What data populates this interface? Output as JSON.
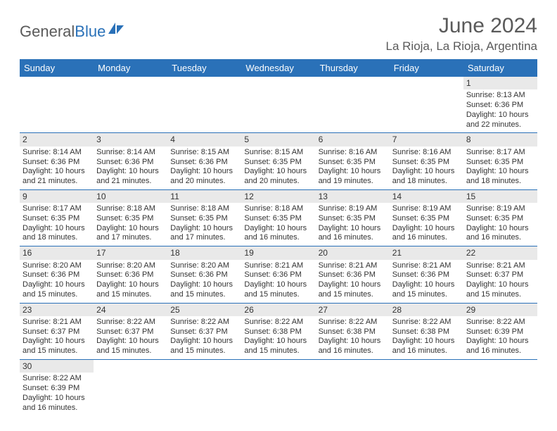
{
  "brand": {
    "part1": "General",
    "part2": "Blue"
  },
  "title": "June 2024",
  "location": "La Rioja, La Rioja, Argentina",
  "colors": {
    "header_bg": "#2a71b8",
    "header_text": "#ffffff",
    "daynum_bg": "#e9e9e9",
    "border": "#2a71b8",
    "text": "#333333",
    "title_text": "#5a5a5a"
  },
  "weekdays": [
    "Sunday",
    "Monday",
    "Tuesday",
    "Wednesday",
    "Thursday",
    "Friday",
    "Saturday"
  ],
  "cells": [
    null,
    null,
    null,
    null,
    null,
    null,
    {
      "n": "1",
      "sr": "8:13 AM",
      "ss": "6:36 PM",
      "dl": "10 hours and 22 minutes."
    },
    {
      "n": "2",
      "sr": "8:14 AM",
      "ss": "6:36 PM",
      "dl": "10 hours and 21 minutes."
    },
    {
      "n": "3",
      "sr": "8:14 AM",
      "ss": "6:36 PM",
      "dl": "10 hours and 21 minutes."
    },
    {
      "n": "4",
      "sr": "8:15 AM",
      "ss": "6:36 PM",
      "dl": "10 hours and 20 minutes."
    },
    {
      "n": "5",
      "sr": "8:15 AM",
      "ss": "6:35 PM",
      "dl": "10 hours and 20 minutes."
    },
    {
      "n": "6",
      "sr": "8:16 AM",
      "ss": "6:35 PM",
      "dl": "10 hours and 19 minutes."
    },
    {
      "n": "7",
      "sr": "8:16 AM",
      "ss": "6:35 PM",
      "dl": "10 hours and 18 minutes."
    },
    {
      "n": "8",
      "sr": "8:17 AM",
      "ss": "6:35 PM",
      "dl": "10 hours and 18 minutes."
    },
    {
      "n": "9",
      "sr": "8:17 AM",
      "ss": "6:35 PM",
      "dl": "10 hours and 18 minutes."
    },
    {
      "n": "10",
      "sr": "8:18 AM",
      "ss": "6:35 PM",
      "dl": "10 hours and 17 minutes."
    },
    {
      "n": "11",
      "sr": "8:18 AM",
      "ss": "6:35 PM",
      "dl": "10 hours and 17 minutes."
    },
    {
      "n": "12",
      "sr": "8:18 AM",
      "ss": "6:35 PM",
      "dl": "10 hours and 16 minutes."
    },
    {
      "n": "13",
      "sr": "8:19 AM",
      "ss": "6:35 PM",
      "dl": "10 hours and 16 minutes."
    },
    {
      "n": "14",
      "sr": "8:19 AM",
      "ss": "6:35 PM",
      "dl": "10 hours and 16 minutes."
    },
    {
      "n": "15",
      "sr": "8:19 AM",
      "ss": "6:35 PM",
      "dl": "10 hours and 16 minutes."
    },
    {
      "n": "16",
      "sr": "8:20 AM",
      "ss": "6:36 PM",
      "dl": "10 hours and 15 minutes."
    },
    {
      "n": "17",
      "sr": "8:20 AM",
      "ss": "6:36 PM",
      "dl": "10 hours and 15 minutes."
    },
    {
      "n": "18",
      "sr": "8:20 AM",
      "ss": "6:36 PM",
      "dl": "10 hours and 15 minutes."
    },
    {
      "n": "19",
      "sr": "8:21 AM",
      "ss": "6:36 PM",
      "dl": "10 hours and 15 minutes."
    },
    {
      "n": "20",
      "sr": "8:21 AM",
      "ss": "6:36 PM",
      "dl": "10 hours and 15 minutes."
    },
    {
      "n": "21",
      "sr": "8:21 AM",
      "ss": "6:36 PM",
      "dl": "10 hours and 15 minutes."
    },
    {
      "n": "22",
      "sr": "8:21 AM",
      "ss": "6:37 PM",
      "dl": "10 hours and 15 minutes."
    },
    {
      "n": "23",
      "sr": "8:21 AM",
      "ss": "6:37 PM",
      "dl": "10 hours and 15 minutes."
    },
    {
      "n": "24",
      "sr": "8:22 AM",
      "ss": "6:37 PM",
      "dl": "10 hours and 15 minutes."
    },
    {
      "n": "25",
      "sr": "8:22 AM",
      "ss": "6:37 PM",
      "dl": "10 hours and 15 minutes."
    },
    {
      "n": "26",
      "sr": "8:22 AM",
      "ss": "6:38 PM",
      "dl": "10 hours and 15 minutes."
    },
    {
      "n": "27",
      "sr": "8:22 AM",
      "ss": "6:38 PM",
      "dl": "10 hours and 16 minutes."
    },
    {
      "n": "28",
      "sr": "8:22 AM",
      "ss": "6:38 PM",
      "dl": "10 hours and 16 minutes."
    },
    {
      "n": "29",
      "sr": "8:22 AM",
      "ss": "6:39 PM",
      "dl": "10 hours and 16 minutes."
    },
    {
      "n": "30",
      "sr": "8:22 AM",
      "ss": "6:39 PM",
      "dl": "10 hours and 16 minutes."
    },
    null,
    null,
    null,
    null,
    null,
    null
  ],
  "labels": {
    "sunrise": "Sunrise: ",
    "sunset": "Sunset: ",
    "daylight": "Daylight: "
  }
}
